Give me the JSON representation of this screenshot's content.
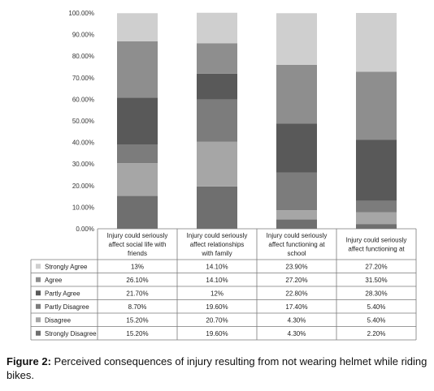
{
  "chart_data": {
    "type": "bar",
    "stacked": true,
    "ylim": [
      0,
      100
    ],
    "y_tick_labels": [
      "0.00%",
      "10.00%",
      "20.00%",
      "30.00%",
      "40.00%",
      "50.00%",
      "60.00%",
      "70.00%",
      "80.00%",
      "90.00%",
      "100.00%"
    ],
    "categories": [
      [
        "Injury could seriously",
        "affect social life with",
        "friends"
      ],
      [
        "Injury could seriously",
        "affect relationships",
        "with family"
      ],
      [
        "Injury could seriously",
        "affect functioning at",
        "school"
      ],
      [
        "Injury could seriously",
        "affect functioning at"
      ]
    ],
    "series": [
      {
        "name": "Strongly Disagree",
        "color": "#6f6f6f",
        "values": [
          15.2,
          19.6,
          4.3,
          2.2
        ],
        "labels": [
          "15.20%",
          "19.60%",
          "4.30%",
          "2.20%"
        ]
      },
      {
        "name": "Disagree",
        "color": "#a6a6a6",
        "values": [
          15.2,
          20.7,
          4.3,
          5.4
        ],
        "labels": [
          "15.20%",
          "20.70%",
          "4.30%",
          "5.40%"
        ]
      },
      {
        "name": "Partly Disagree",
        "color": "#7c7c7c",
        "values": [
          8.7,
          19.6,
          17.4,
          5.4
        ],
        "labels": [
          "8.70%",
          "19.60%",
          "17.40%",
          "5.40%"
        ]
      },
      {
        "name": "Partly Agree",
        "color": "#595959",
        "values": [
          21.7,
          12,
          22.8,
          28.3
        ],
        "labels": [
          "21.70%",
          "12%",
          "22.80%",
          "28.30%"
        ]
      },
      {
        "name": "Agree",
        "color": "#8e8e8e",
        "values": [
          26.1,
          14.1,
          27.2,
          31.5
        ],
        "labels": [
          "26.10%",
          "14.10%",
          "27.20%",
          "31.50%"
        ]
      },
      {
        "name": "Strongly Agree",
        "color": "#cfcfcf",
        "values": [
          13,
          14.1,
          23.9,
          27.2
        ],
        "labels": [
          "13%",
          "14.10%",
          "23.90%",
          "27.20%"
        ]
      }
    ]
  },
  "caption": {
    "label": "Figure 2:",
    "text": " Perceived consequences of injury resulting from not wearing helmet while riding bikes."
  }
}
